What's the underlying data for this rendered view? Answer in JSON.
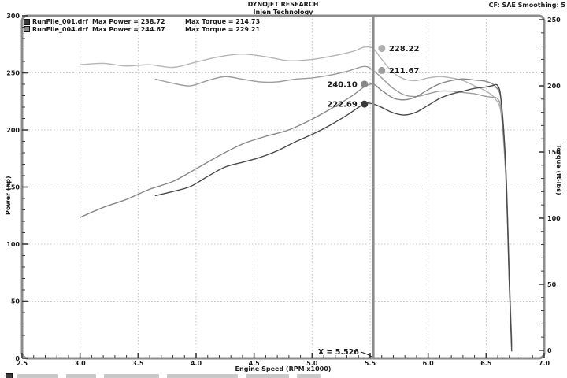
{
  "header": {
    "title": "DYNOJET RESEARCH",
    "subtitle": "Injen Technology",
    "correction_info": "CF: SAE  Smoothing: 5"
  },
  "legend": {
    "entries": [
      {
        "file": "RunFile_001.drf",
        "max_power": "Max Power = 238.72",
        "max_torque": "Max Torque = 214.73",
        "color": "#3a3a3a"
      },
      {
        "file": "RunFile_004.drf",
        "max_power": "Max Power = 244.67",
        "max_torque": "Max Torque = 229.21",
        "color": "#8a8a8a"
      }
    ],
    "clipped_third_row_present": true
  },
  "cursor": {
    "label": "X = 5.526",
    "x": 5.526,
    "line_color": "#8c8c8c",
    "markers": [
      {
        "label": "228.22",
        "value": 228.22,
        "scale": "torque",
        "side": "right",
        "color": "#b0b0b0"
      },
      {
        "label": "211.67",
        "value": 211.67,
        "scale": "torque",
        "side": "right",
        "color": "#9c9c9c"
      },
      {
        "label": "240.10",
        "value": 240.1,
        "scale": "power",
        "side": "left",
        "color": "#888888"
      },
      {
        "label": "222.69",
        "value": 222.69,
        "scale": "power",
        "side": "left",
        "color": "#3a3a3a"
      }
    ]
  },
  "chart_data": {
    "type": "line",
    "title": "DYNOJET RESEARCH",
    "subtitle": "Injen Technology",
    "grid": true,
    "legend_position": "top-left",
    "x_axis": {
      "label": "Engine Speed (RPM x1000)",
      "min": 2.5,
      "max": 7.0,
      "minor_step": 0.1,
      "tick_values": [
        2.5,
        3.0,
        3.5,
        4.0,
        4.5,
        5.0,
        5.5,
        6.0,
        6.5,
        7.0
      ],
      "tick_labels": [
        "2.5",
        "3.0",
        "3.5",
        "4.0",
        "4.5",
        "5.0",
        "5.5",
        "6.0",
        "6.5",
        "7.0"
      ],
      "grid_values": [
        3.0,
        3.5,
        4.0,
        4.5,
        5.0,
        5.5,
        6.0,
        6.5
      ]
    },
    "left_axis": {
      "label": "Power (hp)",
      "min": 0,
      "max": 300,
      "minor_step": 10,
      "tick_values": [
        0,
        50,
        100,
        150,
        200,
        250,
        300
      ],
      "tick_labels": [
        "0",
        "50",
        "100",
        "150",
        "200",
        "250",
        "300"
      ],
      "grid_values": [
        50,
        100,
        150,
        200,
        250
      ]
    },
    "right_axis": {
      "label": "Torque (ft-lbs)",
      "min": 0,
      "max": 250,
      "minor_step": 10,
      "scale_min": -6,
      "scale_max": 253,
      "tick_values": [
        0,
        50,
        100,
        150,
        200,
        250
      ],
      "tick_labels": [
        "0",
        "50",
        "100",
        "150",
        "200",
        "250"
      ]
    },
    "series": [
      {
        "name": "RunFile_004.drf Torque",
        "run": "004",
        "quantity": "torque",
        "axis": "right",
        "color": "#b6b6b6",
        "x": [
          3.0,
          3.2,
          3.4,
          3.6,
          3.8,
          4.0,
          4.2,
          4.4,
          4.6,
          4.8,
          5.0,
          5.2,
          5.35,
          5.45,
          5.526,
          5.6,
          5.7,
          5.8,
          5.9,
          6.0,
          6.1,
          6.2,
          6.3,
          6.4,
          6.5,
          6.58,
          6.63,
          6.67,
          6.7,
          6.72
        ],
        "y": [
          216,
          217,
          215,
          216,
          214,
          218,
          222,
          224,
          222,
          219,
          220,
          223,
          226,
          229.2,
          228.22,
          220,
          210,
          205,
          204,
          206,
          207,
          206,
          204,
          200,
          196,
          190,
          178,
          130,
          55,
          8
        ]
      },
      {
        "name": "RunFile_001.drf Torque",
        "run": "001",
        "quantity": "torque",
        "axis": "right",
        "color": "#9c9c9c",
        "x": [
          3.65,
          3.8,
          3.95,
          4.1,
          4.25,
          4.4,
          4.55,
          4.7,
          4.85,
          5.0,
          5.15,
          5.3,
          5.45,
          5.526,
          5.6,
          5.7,
          5.8,
          5.9,
          6.0,
          6.1,
          6.2,
          6.3,
          6.4,
          6.5,
          6.55,
          6.6,
          6.63,
          6.67,
          6.7,
          6.72
        ],
        "y": [
          205,
          202,
          200,
          204,
          207,
          205,
          203,
          203,
          205,
          206,
          208,
          211,
          214.7,
          211.67,
          206,
          198,
          193,
          192,
          194,
          196,
          196,
          195,
          194,
          192,
          191.4,
          190,
          180,
          130,
          50,
          5
        ]
      },
      {
        "name": "RunFile_004.drf Power",
        "run": "004",
        "quantity": "power",
        "axis": "left",
        "color": "#888888",
        "x": [
          3.0,
          3.2,
          3.4,
          3.6,
          3.8,
          4.0,
          4.2,
          4.4,
          4.6,
          4.8,
          5.0,
          5.2,
          5.35,
          5.45,
          5.526,
          5.6,
          5.7,
          5.8,
          5.9,
          6.0,
          6.1,
          6.2,
          6.3,
          6.4,
          6.5,
          6.58,
          6.63,
          6.67,
          6.7,
          6.72
        ],
        "y": [
          123.4,
          132.2,
          139.2,
          148.1,
          154.9,
          166.0,
          177.5,
          187.7,
          194.4,
          200.1,
          209.4,
          220.8,
          230.2,
          237.8,
          240.1,
          234.6,
          227.9,
          226.4,
          229.2,
          235.3,
          240.4,
          243.2,
          244.7,
          243.7,
          242.5,
          238.0,
          224.7,
          165.0,
          70.2,
          10.2
        ]
      },
      {
        "name": "RunFile_001.drf Power",
        "run": "001",
        "quantity": "power",
        "axis": "left",
        "color": "#4a4a4a",
        "x": [
          3.65,
          3.8,
          3.95,
          4.1,
          4.25,
          4.4,
          4.55,
          4.7,
          4.85,
          5.0,
          5.15,
          5.3,
          5.45,
          5.526,
          5.6,
          5.7,
          5.8,
          5.9,
          6.0,
          6.1,
          6.2,
          6.3,
          6.4,
          6.5,
          6.55,
          6.6,
          6.63,
          6.67,
          6.7,
          6.72
        ],
        "y": [
          142.5,
          146.1,
          150.4,
          159.3,
          167.5,
          171.7,
          175.9,
          181.7,
          189.3,
          196.1,
          203.9,
          212.9,
          222.8,
          222.69,
          219.7,
          214.9,
          213.1,
          215.7,
          221.6,
          227.6,
          231.4,
          233.9,
          236.4,
          237.6,
          238.7,
          238.7,
          224.6,
          165.2,
          63.8,
          6.4
        ]
      }
    ]
  }
}
